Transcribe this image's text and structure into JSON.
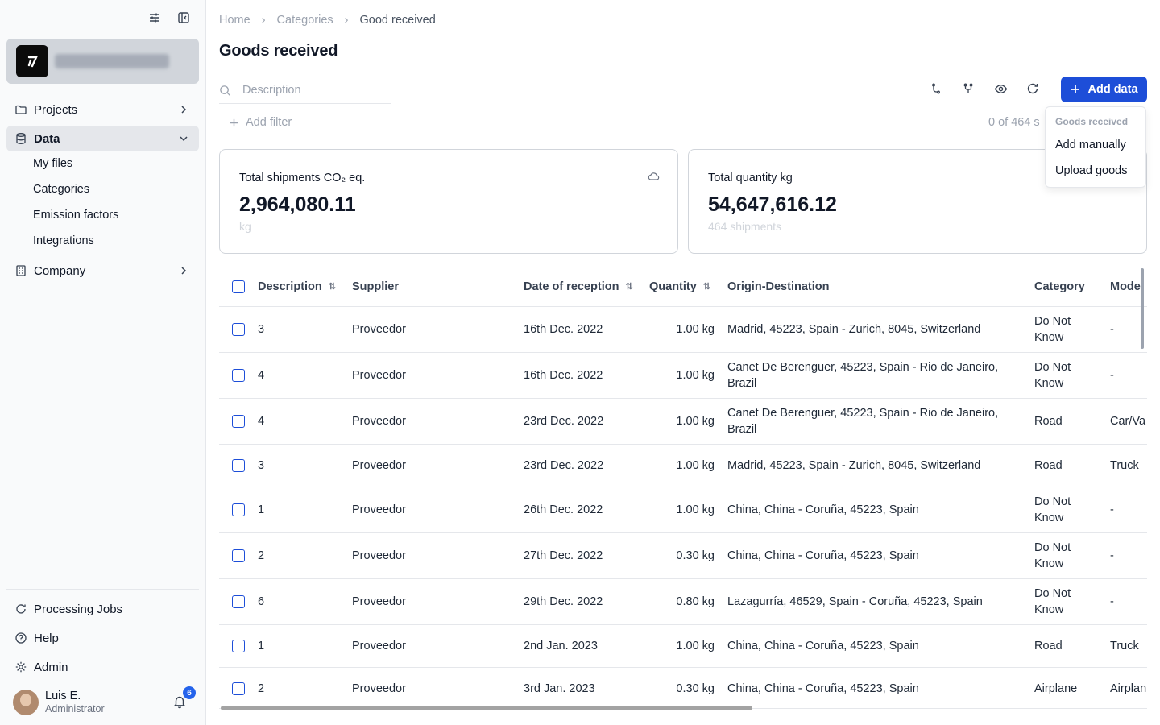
{
  "sidebar": {
    "nav": {
      "projects": "Projects",
      "data": "Data",
      "company": "Company"
    },
    "data_sub": [
      "My files",
      "Categories",
      "Emission factors",
      "Integrations"
    ],
    "bottom": {
      "processing_jobs": "Processing Jobs",
      "help": "Help",
      "admin": "Admin"
    },
    "user": {
      "name": "Luis E.",
      "role": "Administrator"
    },
    "notifications_count": "6"
  },
  "breadcrumb": {
    "home": "Home",
    "categories": "Categories",
    "current": "Good received"
  },
  "page_title": "Goods received",
  "search": {
    "placeholder": "Description",
    "value": ""
  },
  "toolbar": {
    "add_data_label": "Add data",
    "add_filter_label": "Add filter",
    "selected_count": "0 of 464 s"
  },
  "dropdown": {
    "header": "Goods received",
    "items": [
      "Add manually",
      "Upload goods"
    ]
  },
  "cards": {
    "co2": {
      "title": "Total shipments CO₂ eq.",
      "value": "2,964,080.11",
      "unit": "kg"
    },
    "qty": {
      "title": "Total quantity kg",
      "value": "54,647,616.12",
      "sub": "464 shipments"
    }
  },
  "table": {
    "columns": [
      "Description",
      "Supplier",
      "Date of reception",
      "Quantity",
      "Origin-Destination",
      "Category",
      "Mode"
    ],
    "rows": [
      {
        "description": "3",
        "supplier": "Proveedor",
        "date": "16th Dec. 2022",
        "quantity": "1.00 kg",
        "route": "Madrid, 45223, Spain - Zurich, 8045, Switzerland",
        "category": "Do Not Know",
        "mode": "-"
      },
      {
        "description": "4",
        "supplier": "Proveedor",
        "date": "16th Dec. 2022",
        "quantity": "1.00 kg",
        "route": "Canet De Berenguer, 45223, Spain - Rio de Janeiro, Brazil",
        "category": "Do Not Know",
        "mode": "-"
      },
      {
        "description": "4",
        "supplier": "Proveedor",
        "date": "23rd Dec. 2022",
        "quantity": "1.00 kg",
        "route": "Canet De Berenguer, 45223, Spain - Rio de Janeiro, Brazil",
        "category": "Road",
        "mode": "Car/Va"
      },
      {
        "description": "3",
        "supplier": "Proveedor",
        "date": "23rd Dec. 2022",
        "quantity": "1.00 kg",
        "route": "Madrid, 45223, Spain - Zurich, 8045, Switzerland",
        "category": "Road",
        "mode": "Truck"
      },
      {
        "description": "1",
        "supplier": "Proveedor",
        "date": "26th Dec. 2022",
        "quantity": "1.00 kg",
        "route": "China, China - Coruña, 45223, Spain",
        "category": "Do Not Know",
        "mode": "-"
      },
      {
        "description": "2",
        "supplier": "Proveedor",
        "date": "27th Dec. 2022",
        "quantity": "0.30 kg",
        "route": "China, China - Coruña, 45223, Spain",
        "category": "Do Not Know",
        "mode": "-"
      },
      {
        "description": "6",
        "supplier": "Proveedor",
        "date": "29th Dec. 2022",
        "quantity": "0.80 kg",
        "route": "Lazagurría, 46529, Spain - Coruña, 45223, Spain",
        "category": "Do Not Know",
        "mode": "-"
      },
      {
        "description": "1",
        "supplier": "Proveedor",
        "date": "2nd Jan. 2023",
        "quantity": "1.00 kg",
        "route": "China, China - Coruña, 45223, Spain",
        "category": "Road",
        "mode": "Truck"
      },
      {
        "description": "2",
        "supplier": "Proveedor",
        "date": "3rd Jan. 2023",
        "quantity": "0.30 kg",
        "route": "China, China - Coruña, 45223, Spain",
        "category": "Airplane",
        "mode": "Airplan"
      }
    ]
  },
  "colors": {
    "accent": "#1d4ed8",
    "sidebar_bg": "#f9fafb",
    "border": "#e5e7eb"
  }
}
